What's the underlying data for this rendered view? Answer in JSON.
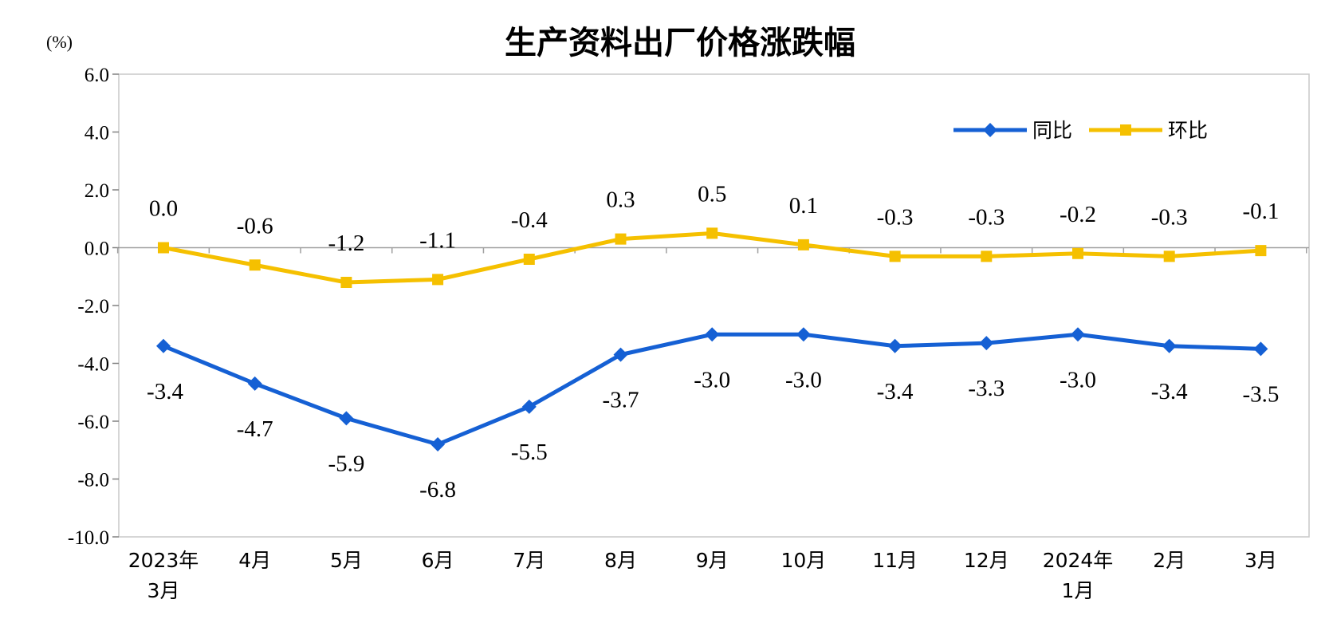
{
  "chart_data": {
    "type": "line",
    "title": "生产资料出厂价格涨跌幅",
    "ylabel": "(%)",
    "ylim": [
      -10,
      6
    ],
    "yticks": [
      "6.0",
      "4.0",
      "2.0",
      "0.0",
      "-2.0",
      "-4.0",
      "-6.0",
      "-8.0",
      "-10.0"
    ],
    "categories": [
      [
        "2023年",
        "3月"
      ],
      [
        "4月"
      ],
      [
        "5月"
      ],
      [
        "6月"
      ],
      [
        "7月"
      ],
      [
        "8月"
      ],
      [
        "9月"
      ],
      [
        "10月"
      ],
      [
        "11月"
      ],
      [
        "12月"
      ],
      [
        "2024年",
        "1月"
      ],
      [
        "2月"
      ],
      [
        "3月"
      ]
    ],
    "series": [
      {
        "name": "同比",
        "color": "#1560d4",
        "marker": "diamond",
        "values": [
          -3.4,
          -4.7,
          -5.9,
          -6.8,
          -5.5,
          -3.7,
          -3.0,
          -3.0,
          -3.4,
          -3.3,
          -3.0,
          -3.4,
          -3.5
        ],
        "labels": [
          "-3.4",
          "-4.7",
          "-5.9",
          "-6.8",
          "-5.5",
          "-3.7",
          "-3.0",
          "-3.0",
          "-3.4",
          "-3.3",
          "-3.0",
          "-3.4",
          "-3.5"
        ],
        "label_position": "below"
      },
      {
        "name": "环比",
        "color": "#f5c000",
        "marker": "square",
        "values": [
          0.0,
          -0.6,
          -1.2,
          -1.1,
          -0.4,
          0.3,
          0.5,
          0.1,
          -0.3,
          -0.3,
          -0.2,
          -0.3,
          -0.1
        ],
        "labels": [
          "0.0",
          "-0.6",
          "-1.2",
          "-1.1",
          "-0.4",
          "0.3",
          "0.5",
          "0.1",
          "-0.3",
          "-0.3",
          "-0.2",
          "-0.3",
          "-0.1"
        ],
        "label_position": "above"
      }
    ],
    "legend_position": "top-right",
    "grid": false
  }
}
